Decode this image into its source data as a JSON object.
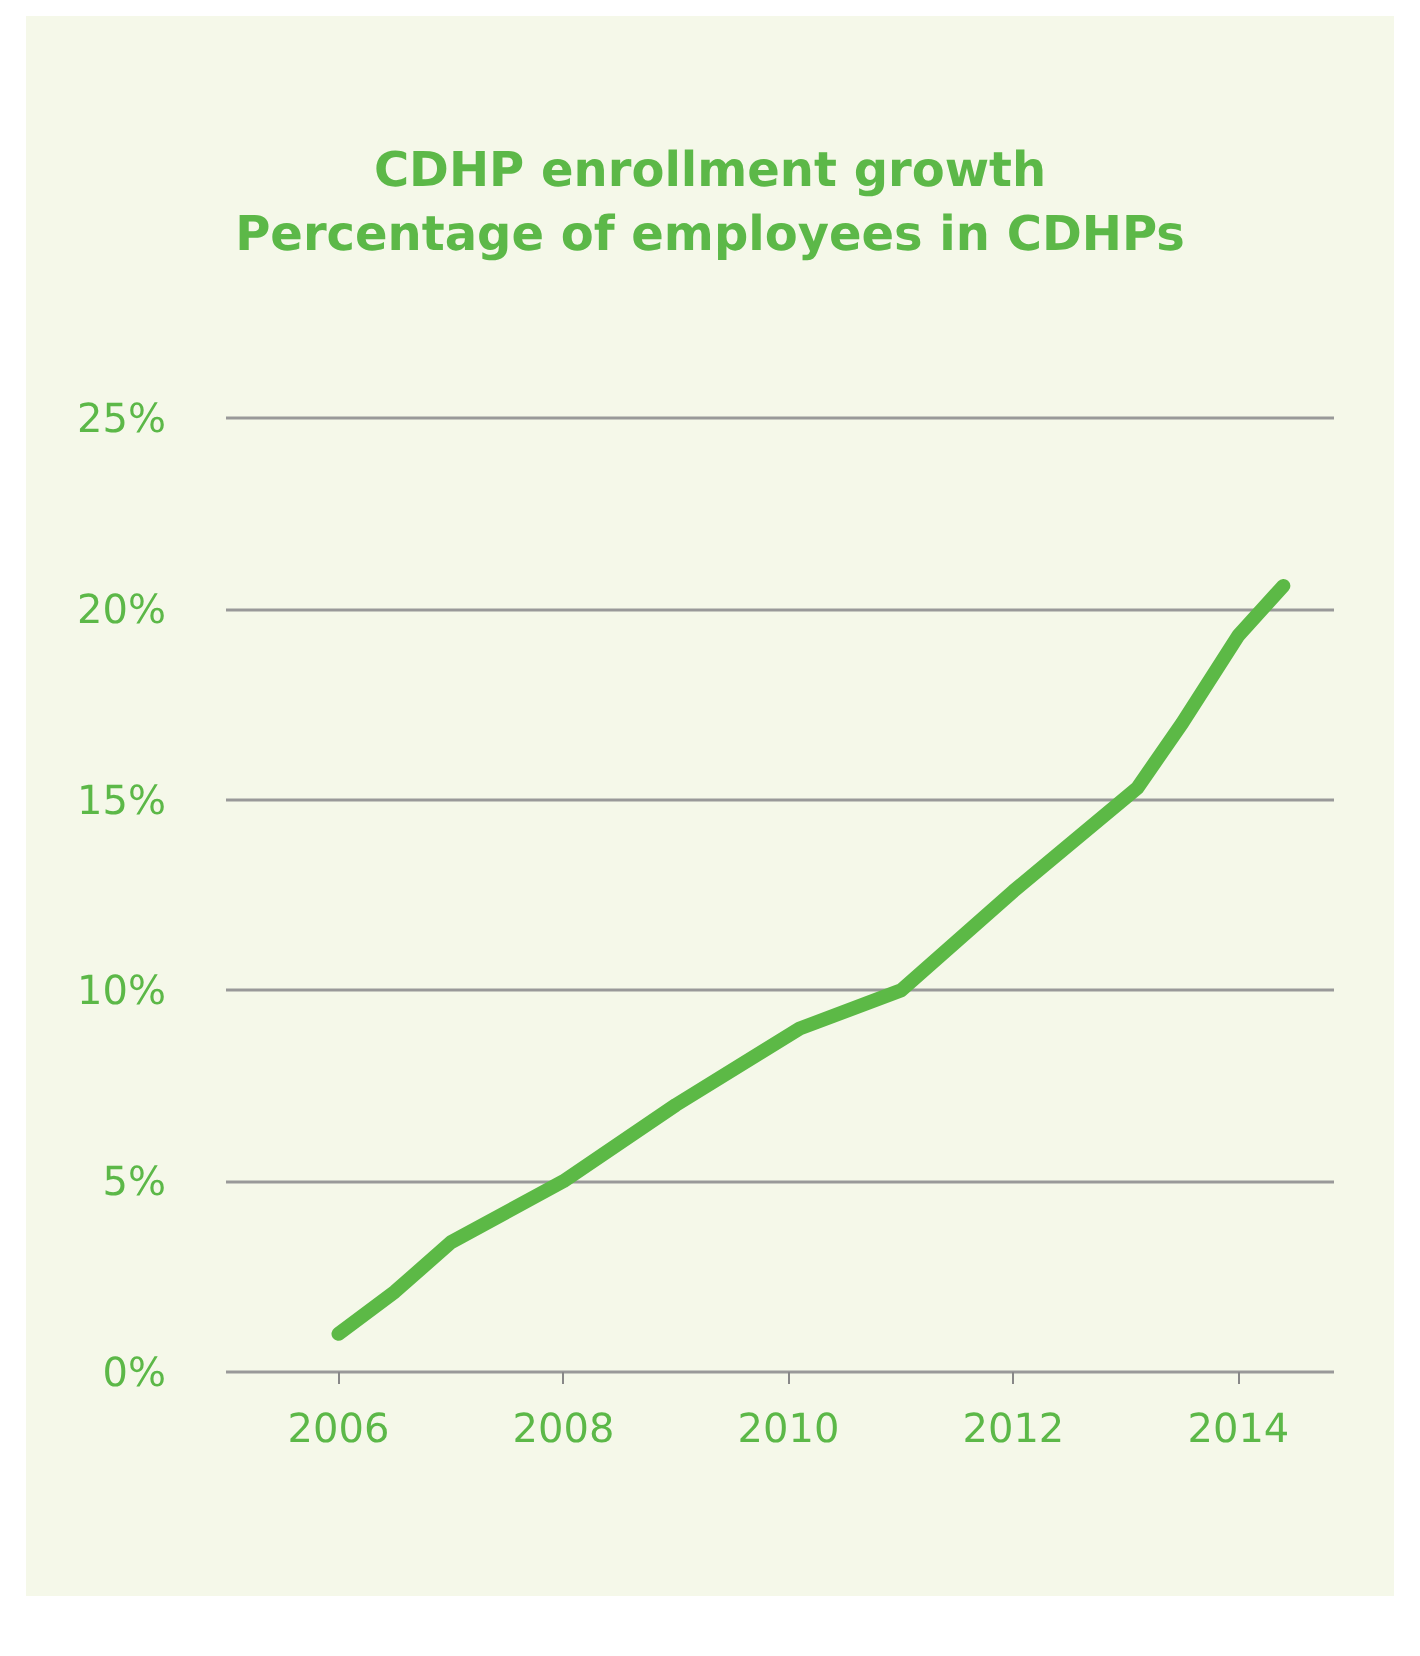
{
  "chart_data": {
    "type": "line",
    "title": "CDHP enrollment growth",
    "subtitle": "Percentage of employees in CDHPs",
    "x": [
      2006,
      2006.5,
      2007,
      2008,
      2009,
      2010.1,
      2011,
      2012,
      2013.1,
      2013.5,
      2014,
      2014.4
    ],
    "series": [
      {
        "color": "#5cb946",
        "values": [
          1.0,
          2.1,
          3.4,
          5.0,
          7.0,
          9.0,
          10.0,
          12.6,
          15.3,
          17.0,
          19.3,
          20.6
        ]
      }
    ],
    "xlim": [
      2005,
      2014.85
    ],
    "xticks": [
      2006,
      2008,
      2010,
      2012,
      2014
    ],
    "ylim": [
      0,
      25
    ],
    "yticks": [
      {
        "value": 0,
        "label": "0%"
      },
      {
        "value": 5,
        "label": "5%"
      },
      {
        "value": 10,
        "label": "10%"
      },
      {
        "value": 15,
        "label": "15%"
      },
      {
        "value": 20,
        "label": "20%"
      },
      {
        "value": 25,
        "label": "25%"
      }
    ],
    "grid": "y",
    "line_style": "solid"
  }
}
